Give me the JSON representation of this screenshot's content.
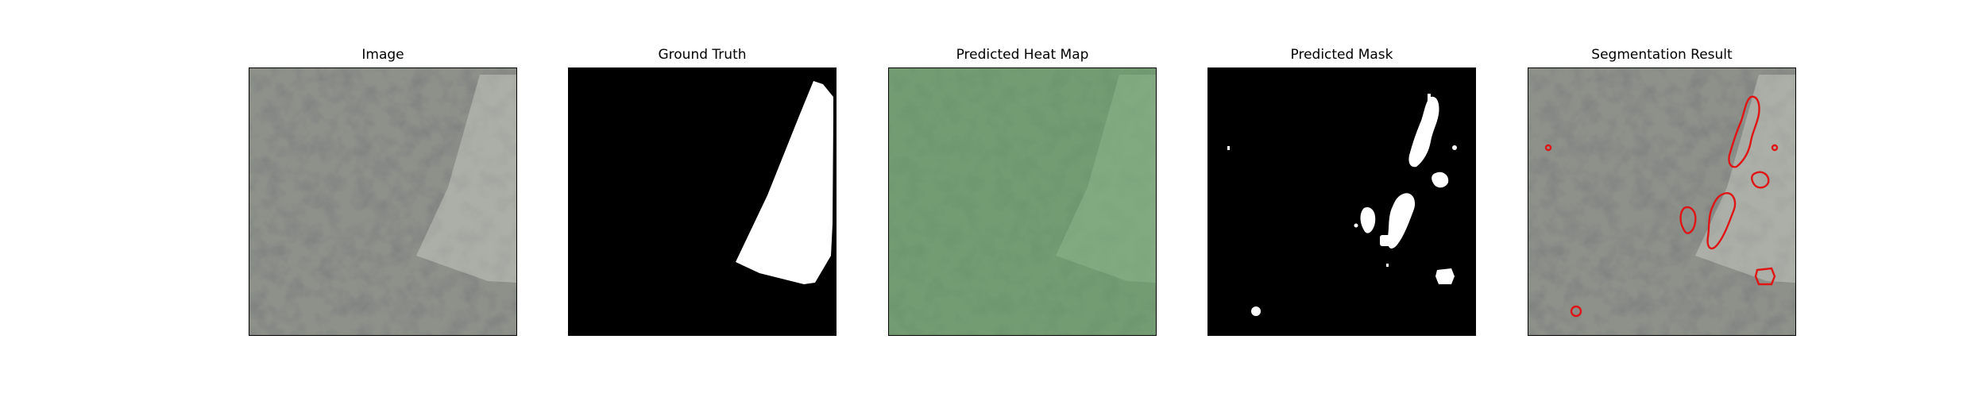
{
  "figure": {
    "panels": [
      {
        "title": "Image"
      },
      {
        "title": "Ground Truth"
      },
      {
        "title": "Predicted Heat Map"
      },
      {
        "title": "Predicted Mask"
      },
      {
        "title": "Segmentation Result"
      }
    ]
  },
  "colors": {
    "background": "#ffffff",
    "texture_base": "#8d918a",
    "texture_dark": "#3a3b3a",
    "texture_light": "#b3b6ad",
    "mask_foreground": "#ffffff",
    "mask_background": "#000000",
    "heatmap_tint": "#5ea660",
    "contour": "#e01414"
  }
}
